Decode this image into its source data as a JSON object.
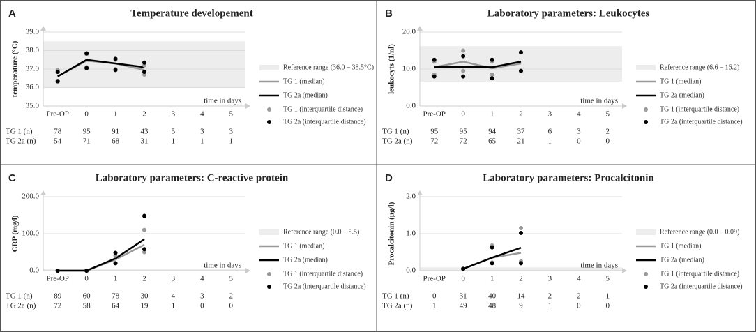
{
  "chart_data": [
    {
      "type": "line",
      "panel": "A",
      "title": "Temperature developement",
      "y_label": "temperature (°C)",
      "x_label": "time in days",
      "categories": [
        "Pre-OP",
        "0",
        "1",
        "2",
        "3",
        "4",
        "5"
      ],
      "ylim": [
        35,
        39
      ],
      "yticks": [
        {
          "value": 35,
          "label": "35.0"
        },
        {
          "value": 36,
          "label": "36.0"
        },
        {
          "value": 37,
          "label": "37.0"
        },
        {
          "value": 38,
          "label": "38.0"
        },
        {
          "value": 39,
          "label": "39.0"
        }
      ],
      "grid": true,
      "reference_range": {
        "label": "Reference range (36.0 – 38.5°C)",
        "range": [
          36.0,
          38.5
        ],
        "color": "#ededed"
      },
      "series": [
        {
          "name": "TG 1 (median)",
          "color": "#999999",
          "values": [
            36.6,
            37.45,
            37.3,
            36.95,
            null,
            null,
            null
          ]
        },
        {
          "name": "TG 2a (median)",
          "color": "#000000",
          "values": [
            36.6,
            37.5,
            37.3,
            37.1,
            null,
            null,
            null
          ]
        }
      ],
      "iqr_series": [
        {
          "name": "TG 1 (interquartile distance)",
          "color": "#999999",
          "lower": [
            36.3,
            37.1,
            37.0,
            36.7,
            null,
            null,
            null
          ],
          "upper": [
            36.95,
            37.8,
            37.5,
            37.2,
            null,
            null,
            null
          ]
        },
        {
          "name": "TG 2a (interquartile distance)",
          "color": "#000000",
          "lower": [
            36.35,
            37.05,
            36.95,
            36.85,
            null,
            null,
            null
          ],
          "upper": [
            36.85,
            37.85,
            37.55,
            37.35,
            null,
            null,
            null
          ]
        }
      ],
      "counts": [
        {
          "label": "TG 1 (n)",
          "values": [
            78,
            95,
            91,
            43,
            5,
            3,
            3
          ]
        },
        {
          "label": "TG 2a (n)",
          "values": [
            54,
            71,
            68,
            31,
            1,
            1,
            1
          ]
        }
      ]
    },
    {
      "type": "line",
      "panel": "B",
      "title": "Laboratory parameters: Leukocytes",
      "y_label": "leukocyts (1/nl)",
      "x_label": "time in days",
      "categories": [
        "Pre-OP",
        "0",
        "1",
        "2",
        "3",
        "4",
        "5"
      ],
      "ylim": [
        0,
        20
      ],
      "yticks": [
        {
          "value": 0,
          "label": "0.0"
        },
        {
          "value": 10,
          "label": "10.0"
        },
        {
          "value": 20,
          "label": "20.0"
        }
      ],
      "grid": true,
      "reference_range": {
        "label": "Reference range (6.6 – 16.2)",
        "range": [
          6.6,
          16.2
        ],
        "color": "#ededed"
      },
      "series": [
        {
          "name": "TG 1 (median)",
          "color": "#999999",
          "values": [
            10.5,
            12.0,
            10.2,
            11.5,
            null,
            null,
            null
          ]
        },
        {
          "name": "TG 2a (median)",
          "color": "#000000",
          "values": [
            10.5,
            10.6,
            10.5,
            12.0,
            null,
            null,
            null
          ]
        }
      ],
      "iqr_series": [
        {
          "name": "TG 1 (interquartile distance)",
          "color": "#999999",
          "lower": [
            8.5,
            9.5,
            8.5,
            9.5,
            null,
            null,
            null
          ],
          "upper": [
            12.0,
            15.0,
            12.0,
            14.5,
            null,
            null,
            null
          ]
        },
        {
          "name": "TG 2a (interquartile distance)",
          "color": "#000000",
          "lower": [
            8.0,
            8.0,
            7.5,
            9.5,
            null,
            null,
            null
          ],
          "upper": [
            12.5,
            13.5,
            12.5,
            14.5,
            null,
            null,
            null
          ]
        }
      ],
      "counts": [
        {
          "label": "TG 1 (n)",
          "values": [
            95,
            95,
            94,
            37,
            6,
            3,
            2
          ]
        },
        {
          "label": "TG 2a (n)",
          "values": [
            72,
            72,
            65,
            21,
            1,
            0,
            0
          ]
        }
      ]
    },
    {
      "type": "line",
      "panel": "C",
      "title": "Laboratory parameters: C-reactive protein",
      "y_label": "CRP (mg/l)",
      "x_label": "time in days",
      "categories": [
        "Pre-OP",
        "0",
        "1",
        "2",
        "3",
        "4",
        "5"
      ],
      "ylim": [
        0,
        200
      ],
      "yticks": [
        {
          "value": 0,
          "label": "0.0"
        },
        {
          "value": 100,
          "label": "100.0"
        },
        {
          "value": 200,
          "label": "200.0"
        }
      ],
      "grid": true,
      "reference_range": {
        "label": "Reference range (0.0 – 5.5)",
        "range": [
          0.0,
          5.5
        ],
        "color": "#ededed"
      },
      "series": [
        {
          "name": "TG 1 (median)",
          "color": "#999999",
          "values": [
            0,
            0,
            30,
            70,
            null,
            null,
            null
          ]
        },
        {
          "name": "TG 2a (median)",
          "color": "#000000",
          "values": [
            0,
            0,
            33,
            85,
            null,
            null,
            null
          ]
        }
      ],
      "iqr_series": [
        {
          "name": "TG 1 (interquartile distance)",
          "color": "#999999",
          "lower": [
            0,
            0,
            20,
            50,
            null,
            null,
            null
          ],
          "upper": [
            0,
            0,
            40,
            110,
            null,
            null,
            null
          ]
        },
        {
          "name": "TG 2a (interquartile distance)",
          "color": "#000000",
          "lower": [
            0,
            0,
            20,
            58,
            null,
            null,
            null
          ],
          "upper": [
            0,
            0,
            48,
            148,
            null,
            null,
            null
          ]
        }
      ],
      "counts": [
        {
          "label": "TG 1 (n)",
          "values": [
            89,
            60,
            78,
            30,
            4,
            3,
            2
          ]
        },
        {
          "label": "TG 2a (n)",
          "values": [
            72,
            58,
            64,
            19,
            1,
            0,
            0
          ]
        }
      ]
    },
    {
      "type": "line",
      "panel": "D",
      "title": "Laboratory parameters: Procalcitonin",
      "y_label": "Procalcitonin (µg/l)",
      "x_label": "time in days",
      "categories": [
        "Pre-OP",
        "0",
        "1",
        "2",
        "3",
        "4",
        "5"
      ],
      "ylim": [
        0,
        2
      ],
      "yticks": [
        {
          "value": 0,
          "label": "0.0"
        },
        {
          "value": 1,
          "label": "1.0"
        },
        {
          "value": 2,
          "label": "2.0"
        }
      ],
      "grid": true,
      "reference_range": {
        "label": "Reference range (0.0 – 0.09)",
        "range": [
          0.0,
          0.09
        ],
        "color": "#ededed"
      },
      "series": [
        {
          "name": "TG 1 (median)",
          "color": "#999999",
          "values": [
            null,
            0.05,
            0.35,
            0.48,
            null,
            null,
            null
          ]
        },
        {
          "name": "TG 2a (median)",
          "color": "#000000",
          "values": [
            null,
            0.05,
            0.35,
            0.62,
            null,
            null,
            null
          ]
        }
      ],
      "iqr_series": [
        {
          "name": "TG 1 (interquartile distance)",
          "color": "#999999",
          "lower": [
            null,
            0.05,
            0.22,
            0.25,
            null,
            null,
            null
          ],
          "upper": [
            null,
            0.05,
            0.68,
            1.15,
            null,
            null,
            null
          ]
        },
        {
          "name": "TG 2a (interquartile distance)",
          "color": "#000000",
          "lower": [
            null,
            0.05,
            0.2,
            0.2,
            null,
            null,
            null
          ],
          "upper": [
            null,
            0.05,
            0.63,
            1.02,
            null,
            null,
            null
          ]
        }
      ],
      "counts": [
        {
          "label": "TG 1 (n)",
          "values": [
            0,
            31,
            40,
            14,
            2,
            2,
            1
          ]
        },
        {
          "label": "TG 2a (n)",
          "values": [
            1,
            49,
            48,
            9,
            1,
            0,
            0
          ]
        }
      ]
    }
  ]
}
